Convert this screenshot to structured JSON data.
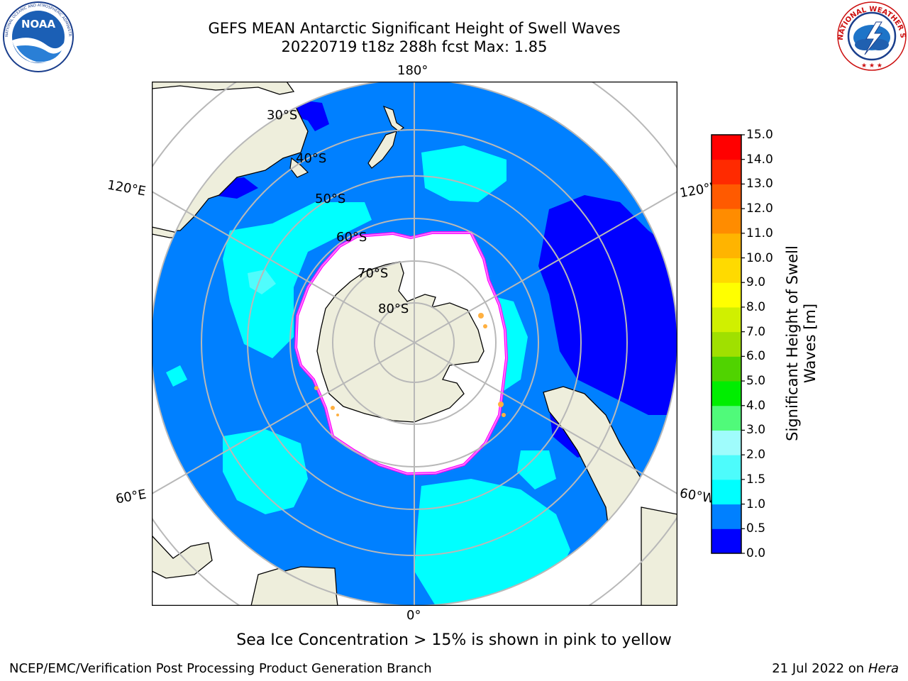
{
  "header": {
    "title_line1": "GEFS MEAN Antarctic Significant Height of Swell Waves",
    "title_line2": "20220719 t18z 288h fcst   Max: 1.85"
  },
  "logos": {
    "noaa_text": "NOAA",
    "noaa_ring_text": "NATIONAL OCEANIC AND ATMOSPHERIC ADMINISTRATION · U.S. DEPARTMENT OF COMMERCE",
    "nws_ring_text": "NATIONAL WEATHER SERVICE"
  },
  "map": {
    "longitude_labels": [
      "180°",
      "120°E",
      "120°W",
      "60°E",
      "60°W",
      "0°"
    ],
    "latitude_labels": [
      "30°S",
      "40°S",
      "50°S",
      "60°S",
      "70°S",
      "80°S"
    ],
    "colors": {
      "land": "#eeeedc",
      "ocean_deep_blue": "#0000ff",
      "ocean_mid_blue": "#0080ff",
      "ocean_cyan": "#00ffff",
      "ocean_light_cyan": "#50fcfc",
      "ice_edge_magenta": "#ff00ff",
      "ice_edge_pink": "#ff80ff",
      "ice_orange": "#ffb040",
      "grid": "#b8b8b8"
    }
  },
  "colorbar": {
    "title_line1": "Significant Height of Swell",
    "title_line2": "Waves [m]",
    "tick_labels": [
      "15.0",
      "14.0",
      "13.0",
      "12.0",
      "11.0",
      "10.0",
      "9.0",
      "8.0",
      "7.0",
      "6.0",
      "5.0",
      "4.0",
      "3.0",
      "2.0",
      "1.5",
      "1.0",
      "0.5",
      "0.0"
    ],
    "colors_bottom_to_top": [
      "#0000ff",
      "#0080ff",
      "#00ffff",
      "#4dfcfc",
      "#9ffcfc",
      "#50fa7a",
      "#00ee00",
      "#50d300",
      "#a0e000",
      "#d0f000",
      "#ffff00",
      "#ffda00",
      "#ffb400",
      "#ff8c00",
      "#ff5a00",
      "#ff2a00",
      "#ff0000"
    ]
  },
  "footer": {
    "note": "Sea Ice Concentration > 15% is shown in pink to yellow",
    "credit": "NCEP/EMC/Verification Post Processing Product Generation Branch",
    "date_text": "21 Jul 2022 on ",
    "host": "Hera"
  }
}
